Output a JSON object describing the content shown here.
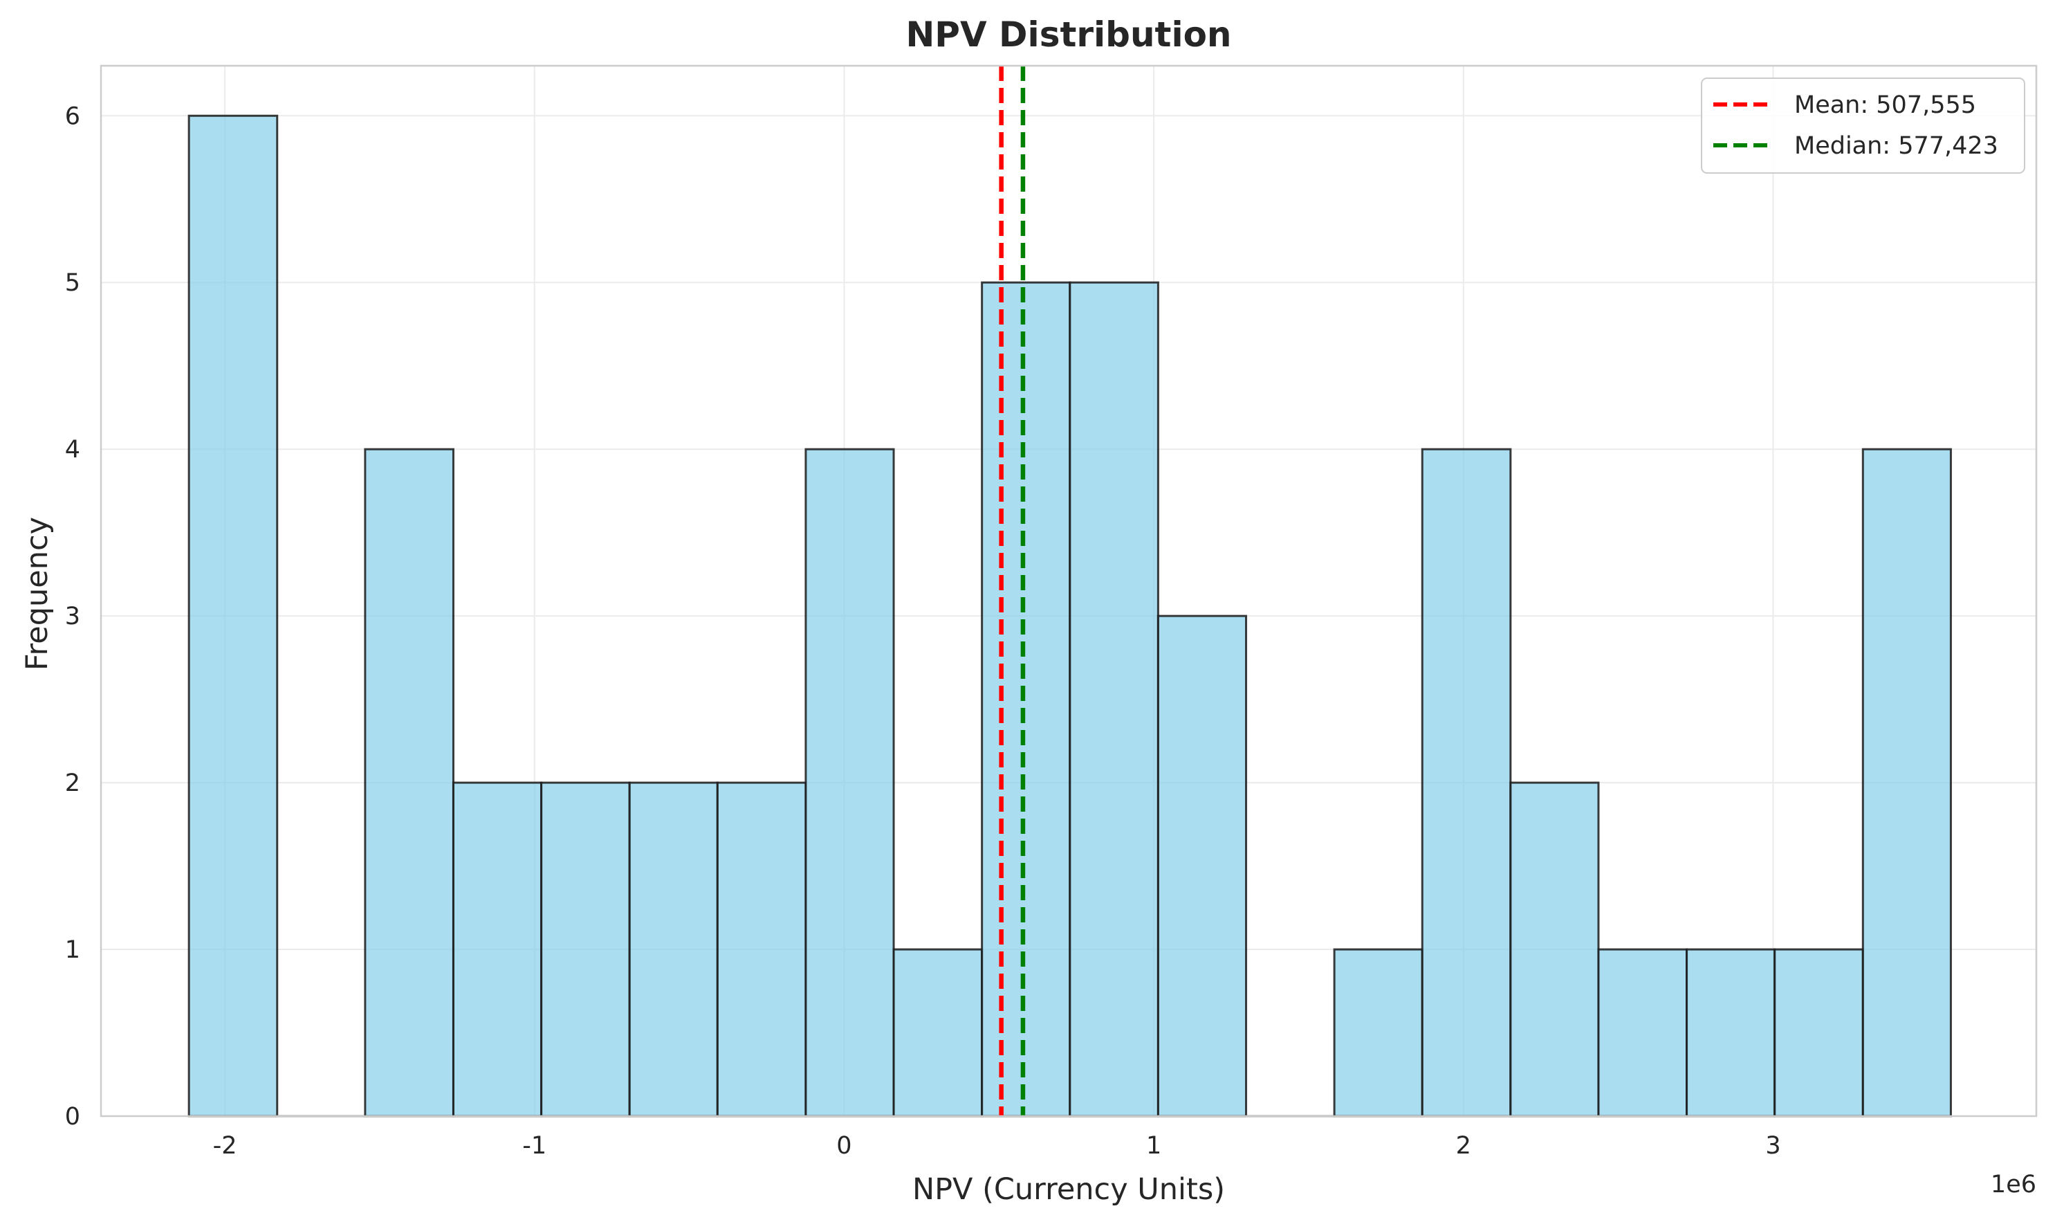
{
  "chart_data": {
    "type": "bar",
    "title": "NPV Distribution",
    "xlabel": "NPV (Currency Units)",
    "ylabel": "Frequency",
    "x_offset_label": "1e6",
    "xlim": [
      -2.4,
      3.85
    ],
    "ylim": [
      0,
      6.3
    ],
    "x_ticks": [
      -2,
      -1,
      0,
      1,
      2,
      3
    ],
    "y_ticks": [
      0,
      1,
      2,
      3,
      4,
      5,
      6
    ],
    "x_tick_labels": [
      "-2",
      "-1",
      "0",
      "1",
      "2",
      "3"
    ],
    "y_tick_labels": [
      "0",
      "1",
      "2",
      "3",
      "4",
      "5",
      "6"
    ],
    "grid": true,
    "bin_edges": [
      -2.116,
      -1.831,
      -1.547,
      -1.262,
      -0.978,
      -0.693,
      -0.409,
      -0.124,
      0.16,
      0.445,
      0.729,
      1.014,
      1.298,
      1.583,
      1.867,
      2.152,
      2.436,
      2.721,
      3.005,
      3.29,
      3.574
    ],
    "counts": [
      6,
      0,
      4,
      2,
      2,
      2,
      2,
      4,
      1,
      5,
      5,
      3,
      0,
      1,
      4,
      2,
      1,
      1,
      1,
      4
    ],
    "bar_color": "#87ceeb",
    "bar_edge_color": "#1a1a1a",
    "reference_lines": [
      {
        "label": "Mean: 507,555",
        "value": 0.507555,
        "color": "#ff0000",
        "style": "dashed"
      },
      {
        "label": "Median: 577,423",
        "value": 0.577423,
        "color": "#008000",
        "style": "dashed"
      }
    ],
    "legend_position": "top-right"
  }
}
